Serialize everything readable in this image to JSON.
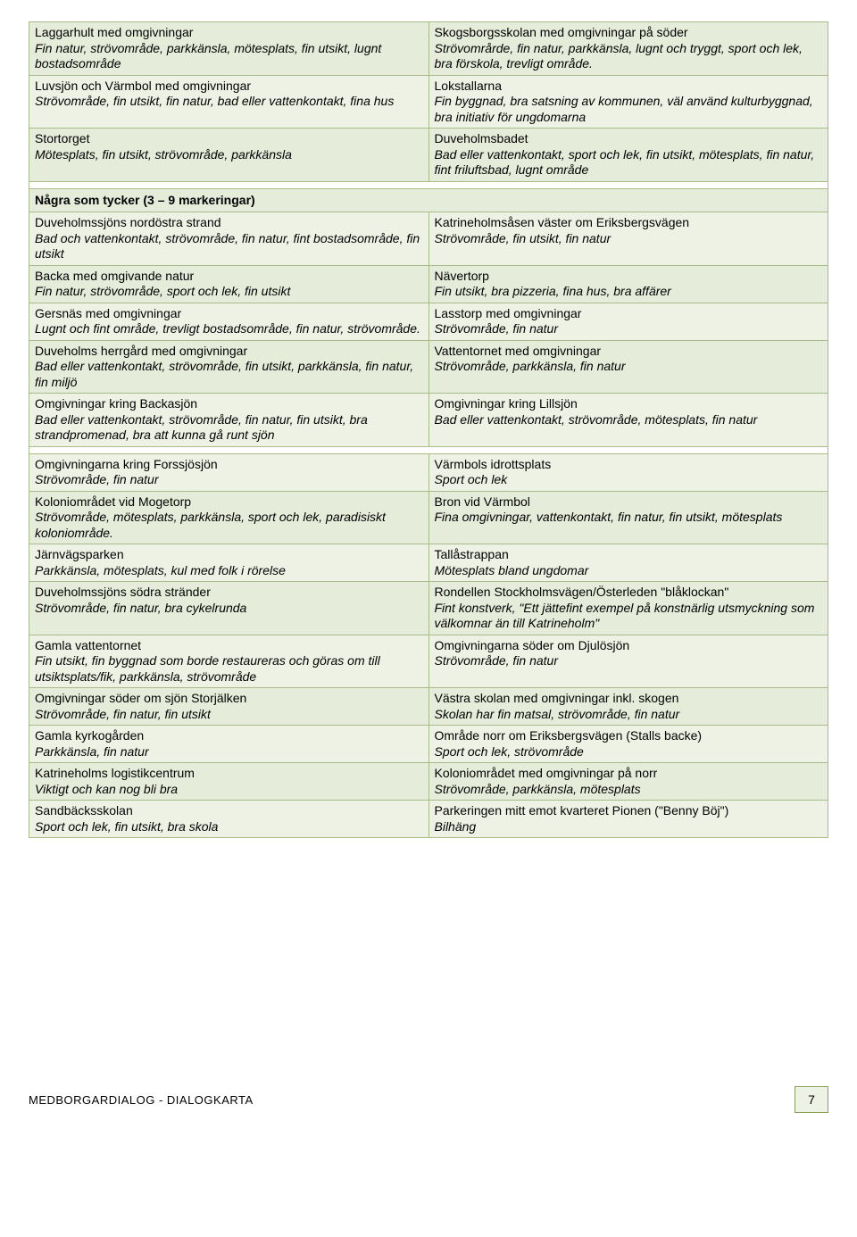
{
  "colors": {
    "row_alt_a": "#eef2e4",
    "row_alt_b": "#e6ecda",
    "border": "#a8b98a",
    "page_bg": "#ffffff"
  },
  "sections": [
    {
      "rows": [
        {
          "bg": "#e6ecda",
          "left": {
            "title": "Laggarhult med omgivningar",
            "desc": "Fin natur, strövområde, parkkänsla, mötesplats, fin utsikt, lugnt bostadsområde"
          },
          "right": {
            "title": "Skogsborgsskolan med omgivningar på söder",
            "desc": "Strövområrde, fin natur, parkkänsla, lugnt och tryggt, sport och lek, bra förskola, trevligt område."
          }
        },
        {
          "bg": "#eef2e4",
          "left": {
            "title": "Luvsjön och Värmbol med omgivningar",
            "desc": "Strövområde, fin utsikt, fin natur, bad eller vattenkontakt, fina hus"
          },
          "right": {
            "title": "Lokstallarna",
            "desc": "Fin byggnad, bra satsning av kommunen, väl använd kulturbyggnad, bra initiativ för ungdomarna"
          }
        },
        {
          "bg": "#e6ecda",
          "left": {
            "title": "Stortorget",
            "desc": "Mötesplats, fin utsikt, strövområde, parkkänsla"
          },
          "right": {
            "title": "Duveholmsbadet",
            "desc": "Bad eller vattenkontakt, sport och lek, fin utsikt, mötesplats, fin natur, fint friluftsbad, lugnt område"
          }
        }
      ]
    },
    {
      "header": "Några som tycker (3 – 9 markeringar)",
      "rows": [
        {
          "bg": "#eef2e4",
          "left": {
            "title": "Duveholmssjöns nordöstra strand",
            "desc": "Bad och vattenkontakt, strövområde, fin natur, fint bostadsområde, fin utsikt"
          },
          "right": {
            "title": "Katrineholmsåsen väster om Eriksbergsvägen",
            "desc": "Strövområde, fin utsikt, fin natur"
          }
        },
        {
          "bg": "#e6ecda",
          "left": {
            "title": "Backa med omgivande natur",
            "desc": "Fin natur, strövområde, sport och lek, fin utsikt"
          },
          "right": {
            "title": "Nävertorp",
            "desc": "Fin utsikt, bra pizzeria, fina hus, bra affärer"
          }
        },
        {
          "bg": "#eef2e4",
          "left": {
            "title": "Gersnäs med omgivningar",
            "desc": "Lugnt och fint område, trevligt bostadsområde, fin natur, strövområde."
          },
          "right": {
            "title": "Lasstorp med omgivningar",
            "desc": "Strövområde, fin natur"
          }
        },
        {
          "bg": "#e6ecda",
          "left": {
            "title": "Duveholms herrgård med omgivningar",
            "desc": "Bad eller vattenkontakt, strövområde, fin utsikt, parkkänsla, fin natur, fin miljö"
          },
          "right": {
            "title": "Vattentornet med omgivningar",
            "desc": "Strövområde, parkkänsla, fin natur"
          }
        },
        {
          "bg": "#eef2e4",
          "left": {
            "title": "Omgivningar kring Backasjön",
            "desc": "Bad eller vattenkontakt, strövområde, fin natur, fin utsikt, bra strandpromenad, bra att kunna gå runt sjön"
          },
          "right": {
            "title": "Omgivningar kring Lillsjön",
            "desc": "Bad eller vattenkontakt, strövområde, mötesplats, fin natur"
          }
        }
      ]
    },
    {
      "rows": [
        {
          "bg": "#eef2e4",
          "left": {
            "title": "Omgivningarna kring Forssjösjön",
            "desc": "Strövområde, fin natur"
          },
          "right": {
            "title": "Värmbols idrottsplats",
            "desc": "Sport och lek"
          }
        },
        {
          "bg": "#e6ecda",
          "left": {
            "title": "Koloniområdet vid Mogetorp",
            "desc": "Strövområde, mötesplats, parkkänsla, sport och lek, paradisiskt koloniområde."
          },
          "right": {
            "title": "Bron vid Värmbol",
            "desc": "Fina omgivningar, vattenkontakt, fin natur, fin utsikt, mötesplats"
          }
        },
        {
          "bg": "#eef2e4",
          "left": {
            "title": "Järnvägsparken",
            "desc": "Parkkänsla, mötesplats, kul med folk i rörelse"
          },
          "right": {
            "title": "Tallåstrappan",
            "desc": "Mötesplats bland ungdomar"
          }
        },
        {
          "bg": "#e6ecda",
          "left": {
            "title": "Duveholmssjöns södra stränder",
            "desc": "Strövområde, fin natur, bra cykelrunda"
          },
          "right": {
            "title": "Rondellen Stockholmsvägen/Österleden \"blåklockan\"",
            "desc": "Fint konstverk, \"Ett jättefint exempel på konstnärlig utsmyckning som välkomnar än till Katrineholm\""
          }
        },
        {
          "bg": "#eef2e4",
          "left": {
            "title": "Gamla vattentornet",
            "desc": "Fin utsikt, fin byggnad som borde restaureras och göras om till utsiktsplats/fik, parkkänsla, strövområde"
          },
          "right": {
            "title": "Omgivningarna söder om Djulösjön",
            "desc": "Strövområde, fin natur"
          }
        },
        {
          "bg": "#e6ecda",
          "left": {
            "title": "Omgivningar söder om sjön Storjälken",
            "desc": "Strövområde, fin natur, fin utsikt"
          },
          "right": {
            "title": "Västra skolan med omgivningar inkl. skogen",
            "desc": "Skolan har fin matsal, strövområde, fin natur"
          }
        },
        {
          "bg": "#eef2e4",
          "left": {
            "title": "Gamla kyrkogården",
            "desc": "Parkkänsla, fin natur"
          },
          "right": {
            "title": "Område norr om Eriksbergsvägen (Stalls backe)",
            "desc": "Sport och lek, strövområde"
          }
        },
        {
          "bg": "#e6ecda",
          "left": {
            "title": "Katrineholms logistikcentrum",
            "desc": "Viktigt och kan nog bli bra"
          },
          "right": {
            "title": "Koloniområdet med omgivningar på norr",
            "desc": "Strövområde, parkkänsla, mötesplats"
          }
        },
        {
          "bg": "#eef2e4",
          "left": {
            "title": "Sandbäcksskolan",
            "desc": "Sport och lek, fin utsikt, bra skola"
          },
          "right": {
            "title": "Parkeringen mitt emot kvarteret Pionen (\"Benny Böj\")",
            "desc": "Bilhäng"
          }
        }
      ]
    }
  ],
  "footer": {
    "left": "MEDBORGARDIALOG - DIALOGKARTA",
    "page": "7"
  }
}
